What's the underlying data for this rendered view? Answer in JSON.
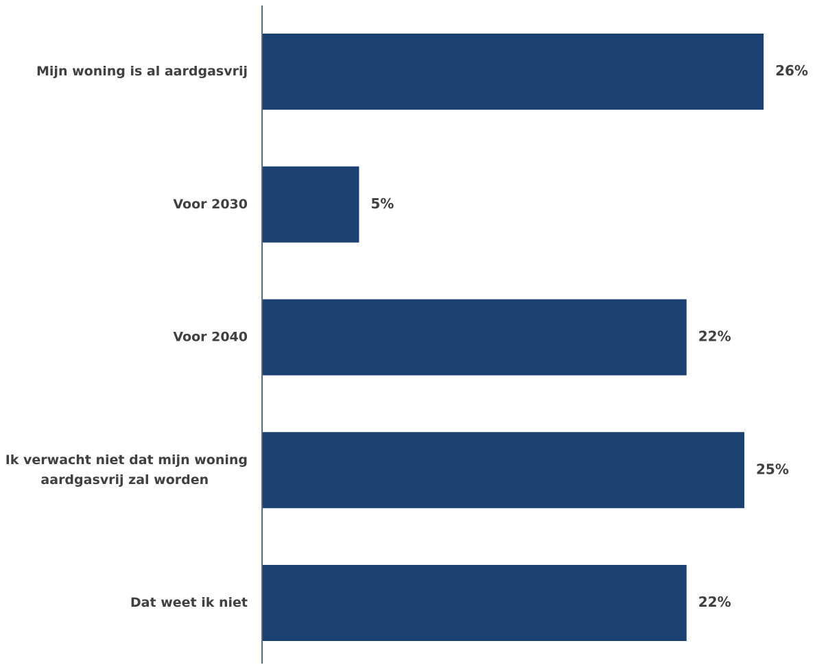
{
  "chart_data": {
    "type": "bar",
    "orientation": "horizontal",
    "categories": [
      "Mijn woning is al aardgasvrij",
      "Voor 2030",
      "Voor 2040",
      "Ik verwacht niet dat mijn woning aardgasvrij zal worden",
      "Dat weet ik niet"
    ],
    "series": [
      {
        "values": [
          26,
          5,
          22,
          25,
          22
        ]
      }
    ],
    "value_labels": [
      "26%",
      "5%",
      "22%",
      "25%",
      "22%"
    ],
    "unit": "%",
    "xlim": [
      0,
      26
    ],
    "grid": false,
    "legend": "none",
    "colors": {
      "bar": "#1b4170",
      "axis": "#1b3a5c",
      "text": "#404040"
    }
  }
}
